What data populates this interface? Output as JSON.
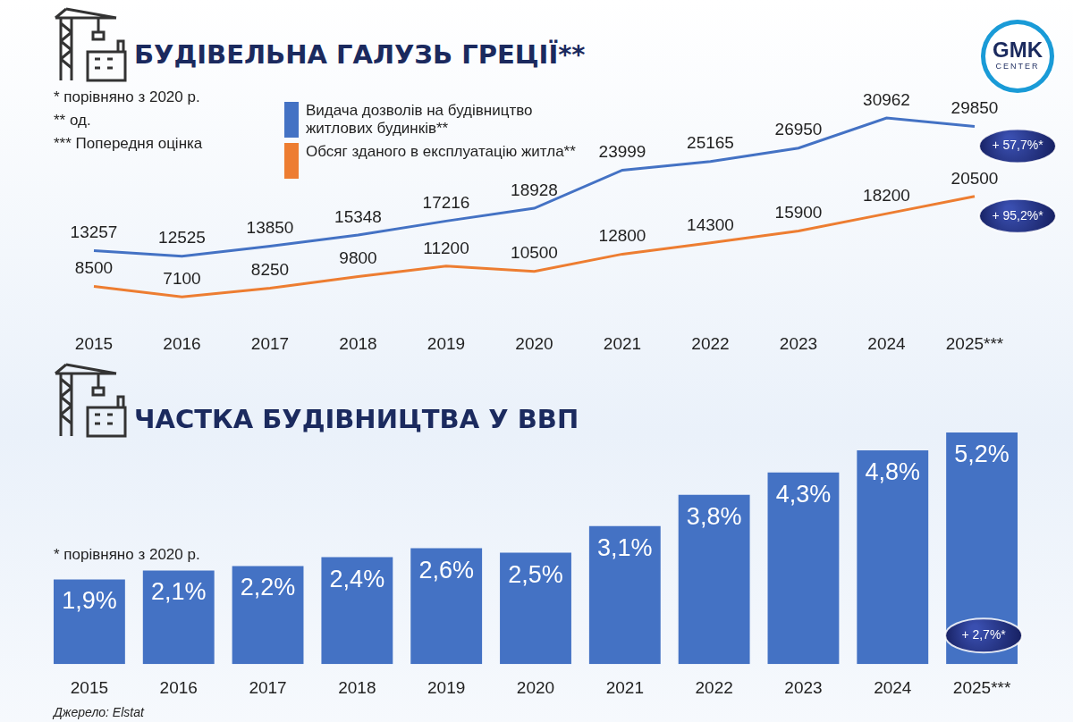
{
  "chart_data": [
    {
      "type": "line",
      "title": "БУДІВЕЛЬНА ГАЛУЗЬ ГРЕЦІЇ**",
      "notes": [
        "* порівняно з 2020 р.",
        "** од.",
        "*** Попередня оцінка"
      ],
      "categories": [
        "2015",
        "2016",
        "2017",
        "2018",
        "2019",
        "2020",
        "2021",
        "2022",
        "2023",
        "2024",
        "2025***"
      ],
      "series": [
        {
          "name": "Видача дозволів на будівництво житлових будинків**",
          "color": "#4472c4",
          "marker": "none",
          "values": [
            13257,
            12525,
            13850,
            15348,
            17216,
            18928,
            23999,
            25165,
            26950,
            30962,
            29850
          ],
          "annotation": "+ 57,7%*"
        },
        {
          "name": "Обсяг зданого в експлуатацію житла**",
          "color": "#ed7d31",
          "marker": "none",
          "values": [
            8500,
            7100,
            8250,
            9800,
            11200,
            10500,
            12800,
            14300,
            15900,
            18200,
            20500
          ],
          "annotation": "+ 95,2%*"
        }
      ],
      "ylim": [
        4000,
        33000
      ],
      "grid": false,
      "legend": "top",
      "data_labels": true,
      "tick_labels": "x"
    },
    {
      "type": "bar",
      "title": "ЧАСТКА БУДІВНИЦТВА У ВВП",
      "notes": [
        "* порівняно з 2020 р."
      ],
      "categories": [
        "2015",
        "2016",
        "2017",
        "2018",
        "2019",
        "2020",
        "2021",
        "2022",
        "2023",
        "2024",
        "2025***"
      ],
      "values": [
        1.9,
        2.1,
        2.2,
        2.4,
        2.6,
        2.5,
        3.1,
        3.8,
        4.3,
        4.8,
        5.2
      ],
      "value_labels": [
        "1,9%",
        "2,1%",
        "2,2%",
        "2,4%",
        "2,6%",
        "2,5%",
        "3,1%",
        "3,8%",
        "4,3%",
        "4,8%",
        "5,2%"
      ],
      "color": "#4472c4",
      "annotation": "+ 2,7%*",
      "ylim": [
        0,
        5.5
      ],
      "grid": false,
      "data_labels": true,
      "tick_labels": "x"
    }
  ],
  "source": "Джерело: Elstat",
  "logo": [
    "GMK",
    "CENTER"
  ]
}
